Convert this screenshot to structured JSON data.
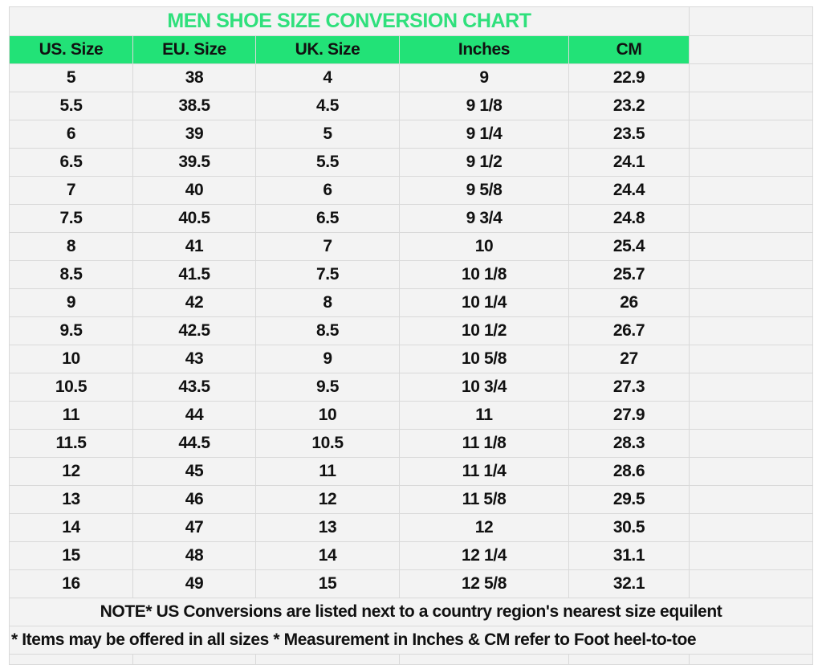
{
  "title": "MEN SHOE SIZE CONVERSION CHART",
  "colors": {
    "accent_green": "#22e277",
    "title_green": "#2fe07c",
    "cell_bg": "#f3f3f3",
    "grid": "#d9d9d9"
  },
  "columns": [
    "US. Size",
    "EU. Size",
    "UK. Size",
    "Inches",
    "CM"
  ],
  "rows": [
    [
      "5",
      "38",
      "4",
      "9",
      "22.9"
    ],
    [
      "5.5",
      "38.5",
      "4.5",
      "9 1/8",
      "23.2"
    ],
    [
      "6",
      "39",
      "5",
      "9 1/4",
      "23.5"
    ],
    [
      "6.5",
      "39.5",
      "5.5",
      "9 1/2",
      "24.1"
    ],
    [
      "7",
      "40",
      "6",
      "9 5/8",
      "24.4"
    ],
    [
      "7.5",
      "40.5",
      "6.5",
      "9 3/4",
      "24.8"
    ],
    [
      "8",
      "41",
      "7",
      "10",
      "25.4"
    ],
    [
      "8.5",
      "41.5",
      "7.5",
      "10 1/8",
      "25.7"
    ],
    [
      "9",
      "42",
      "8",
      "10 1/4",
      "26"
    ],
    [
      "9.5",
      "42.5",
      "8.5",
      "10 1/2",
      "26.7"
    ],
    [
      "10",
      "43",
      "9",
      "10 5/8",
      "27"
    ],
    [
      "10.5",
      "43.5",
      "9.5",
      "10 3/4",
      "27.3"
    ],
    [
      "11",
      "44",
      "10",
      "11",
      "27.9"
    ],
    [
      "11.5",
      "44.5",
      "10.5",
      "11 1/8",
      "28.3"
    ],
    [
      "12",
      "45",
      "11",
      "11 1/4",
      "28.6"
    ],
    [
      "13",
      "46",
      "12",
      "11 5/8",
      "29.5"
    ],
    [
      "14",
      "47",
      "13",
      "12",
      "30.5"
    ],
    [
      "15",
      "48",
      "14",
      "12 1/4",
      "31.1"
    ],
    [
      "16",
      "49",
      "15",
      "12 5/8",
      "32.1"
    ]
  ],
  "note": "NOTE* US Conversions are listed next to a country region's nearest size equilent",
  "note2": "* Items may be offered in all sizes * Measurement in Inches & CM refer to Foot heel-to-toe"
}
